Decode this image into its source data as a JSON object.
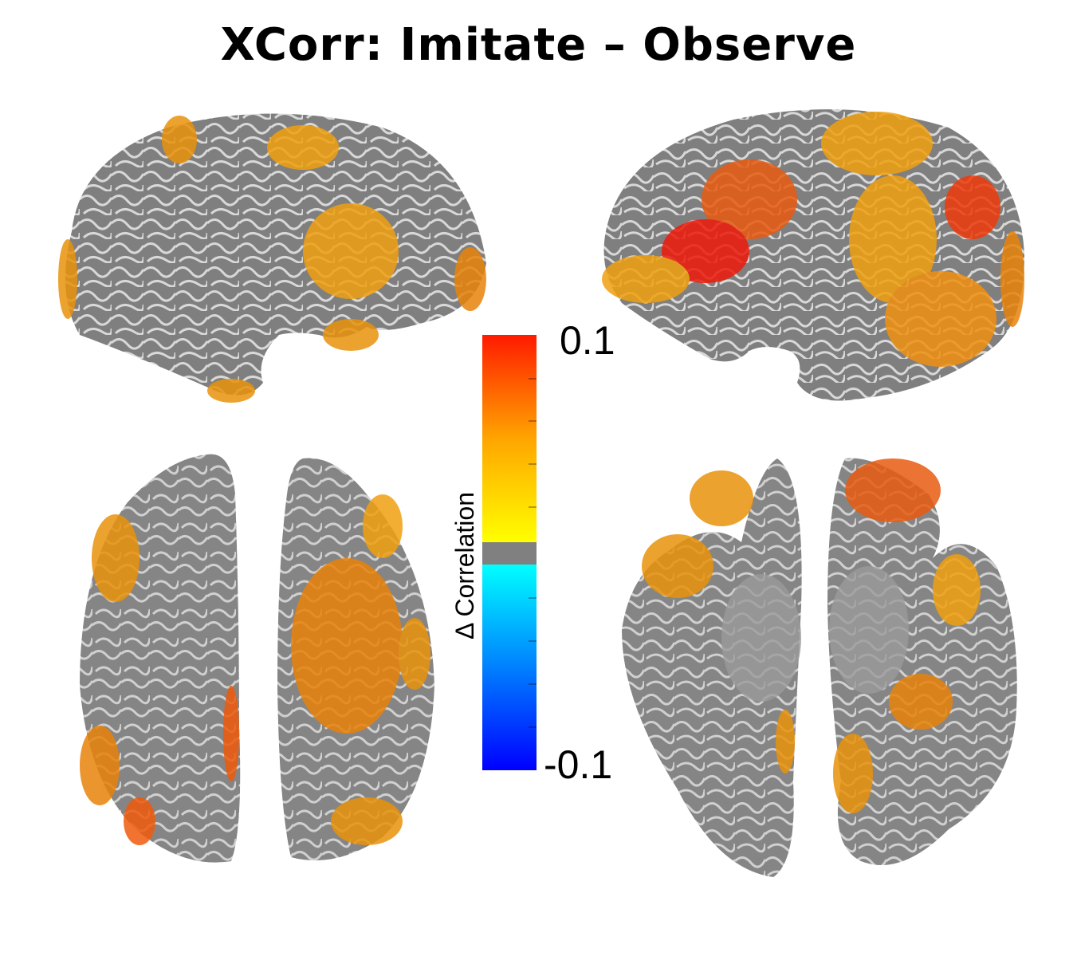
{
  "title": "XCorr: Imitate – Observe",
  "colorbar": {
    "label": "Δ Correlation",
    "max_label": "0.1",
    "min_label": "-0.1",
    "range": [
      -0.1,
      0.1
    ],
    "colors": {
      "max": "#ff1a00",
      "mid_high": "#ffa500",
      "threshold_positive": "#ffff00",
      "subthreshold": "#808080",
      "threshold_negative": "#00ffff",
      "min": "#0000ff"
    }
  },
  "brain_colors": {
    "cortex": "#8a8a8a",
    "sulci": "#d9d9d9",
    "activation_orange": "#e8920a",
    "activation_red": "#ee2a0a"
  }
}
